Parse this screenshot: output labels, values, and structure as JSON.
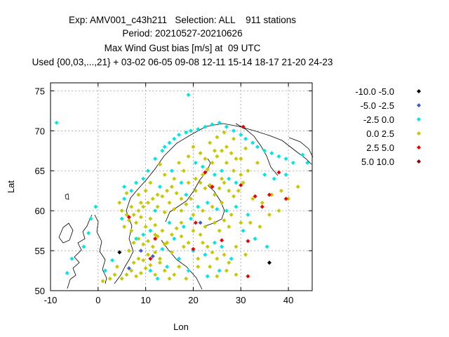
{
  "chart_data": {
    "type": "scatter",
    "title_lines": [
      "Exp: AMV001_c43h211   Selection: ALL    911 stations",
      "Period: 20210527-20210626",
      "Max Wind Gust bias [m/s] at  09 UTC",
      "Used {00,03,...,21} + 03-02 06-05 09-08 12-11 15-14 18-17 21-20 24-23"
    ],
    "xlabel": "Lon",
    "ylabel": "Lat",
    "xlim": [
      -10,
      45
    ],
    "ylim": [
      50,
      76
    ],
    "xticks": [
      -10,
      0,
      10,
      20,
      30,
      40
    ],
    "yticks": [
      50,
      55,
      60,
      65,
      70,
      75
    ],
    "xtick_labels": [
      "-10",
      "0",
      "10",
      "20",
      "30",
      "40"
    ],
    "ytick_labels": [
      "50",
      "55",
      "60",
      "65",
      "70",
      "75"
    ],
    "grid": true,
    "legend_position": "right",
    "series": [
      {
        "name": "-10.0 -5.0",
        "color": "#000000",
        "points": [
          [
            4.5,
            54.8
          ],
          [
            36.0,
            53.5
          ]
        ]
      },
      {
        "name": "-5.0 -2.5",
        "color": "#3a5fcd",
        "points": [
          [
            9.0,
            55.0
          ],
          [
            21.5,
            58.5
          ],
          [
            6.5,
            52.8
          ],
          [
            11.5,
            54.3
          ]
        ]
      },
      {
        "name": "-2.5 0.0",
        "color": "#00e5e5",
        "points": [
          [
            -8.7,
            71.0
          ],
          [
            19.0,
            74.5
          ],
          [
            -6.5,
            52.2
          ],
          [
            -5.5,
            54.0
          ],
          [
            -3.0,
            55.5
          ],
          [
            -2.0,
            57.2
          ],
          [
            -1.5,
            59.0
          ],
          [
            -0.5,
            60.5
          ],
          [
            1.5,
            52.5
          ],
          [
            3.0,
            53.8
          ],
          [
            5.0,
            59.0
          ],
          [
            5.5,
            61.5
          ],
          [
            5.5,
            63.0
          ],
          [
            7.0,
            62.5
          ],
          [
            8.0,
            63.5
          ],
          [
            9.5,
            64.0
          ],
          [
            10.5,
            65.0
          ],
          [
            12.0,
            66.5
          ],
          [
            13.5,
            67.5
          ],
          [
            14.0,
            68.0
          ],
          [
            15.0,
            68.5
          ],
          [
            16.0,
            69.0
          ],
          [
            17.0,
            69.5
          ],
          [
            18.5,
            69.8
          ],
          [
            19.5,
            70.0
          ],
          [
            21.0,
            70.2
          ],
          [
            22.5,
            70.5
          ],
          [
            24.0,
            70.8
          ],
          [
            25.5,
            71.0
          ],
          [
            27.0,
            70.5
          ],
          [
            28.5,
            70.0
          ],
          [
            30.0,
            69.5
          ],
          [
            31.0,
            69.0
          ],
          [
            32.5,
            68.5
          ],
          [
            33.5,
            68.0
          ],
          [
            35.0,
            67.5
          ],
          [
            36.5,
            67.2
          ],
          [
            38.0,
            66.8
          ],
          [
            39.5,
            66.5
          ],
          [
            41.0,
            66.0
          ],
          [
            43.0,
            67.0
          ],
          [
            44.0,
            66.0
          ],
          [
            12.0,
            60.0
          ],
          [
            15.0,
            58.5
          ],
          [
            18.0,
            58.0
          ],
          [
            19.5,
            59.0
          ],
          [
            21.0,
            60.5
          ],
          [
            23.0,
            61.0
          ],
          [
            25.0,
            60.2
          ],
          [
            27.0,
            60.0
          ],
          [
            29.0,
            60.5
          ],
          [
            31.5,
            59.5
          ],
          [
            20.0,
            55.0
          ],
          [
            22.5,
            54.5
          ],
          [
            24.5,
            56.0
          ],
          [
            26.0,
            55.5
          ],
          [
            28.0,
            54.0
          ],
          [
            16.0,
            56.5
          ],
          [
            13.5,
            55.2
          ],
          [
            11.0,
            57.5
          ],
          [
            9.5,
            57.0
          ],
          [
            8.0,
            56.5
          ],
          [
            14.5,
            53.0
          ],
          [
            17.0,
            54.0
          ],
          [
            19.0,
            52.5
          ],
          [
            23.0,
            51.8
          ],
          [
            25.5,
            52.5
          ],
          [
            30.5,
            57.5
          ],
          [
            33.0,
            56.5
          ],
          [
            35.5,
            55.5
          ],
          [
            20.5,
            66.0
          ],
          [
            22.0,
            65.5
          ],
          [
            24.5,
            64.5
          ],
          [
            26.0,
            65.0
          ],
          [
            27.5,
            64.0
          ],
          [
            29.0,
            63.5
          ],
          [
            15.5,
            65.0
          ],
          [
            17.5,
            63.5
          ],
          [
            18.5,
            62.0
          ],
          [
            13.0,
            63.0
          ],
          [
            35.0,
            64.5
          ],
          [
            37.0,
            64.0
          ],
          [
            39.5,
            64.5
          ],
          [
            11.0,
            52.5
          ],
          [
            12.5,
            51.5
          ]
        ]
      },
      {
        "name": "0.0 2.5",
        "color": "#c8c800",
        "points": [
          [
            5.0,
            51.5
          ],
          [
            6.0,
            52.0
          ],
          [
            7.0,
            52.5
          ],
          [
            8.0,
            51.8
          ],
          [
            9.0,
            52.2
          ],
          [
            10.0,
            52.8
          ],
          [
            11.0,
            53.2
          ],
          [
            12.0,
            52.0
          ],
          [
            13.0,
            53.5
          ],
          [
            14.0,
            52.5
          ],
          [
            15.0,
            51.5
          ],
          [
            7.5,
            53.5
          ],
          [
            8.5,
            54.0
          ],
          [
            9.5,
            53.8
          ],
          [
            10.5,
            54.5
          ],
          [
            6.5,
            55.0
          ],
          [
            7.5,
            56.0
          ],
          [
            8.5,
            56.5
          ],
          [
            9.5,
            55.8
          ],
          [
            10.5,
            56.2
          ],
          [
            11.5,
            55.5
          ],
          [
            12.5,
            56.8
          ],
          [
            13.5,
            57.5
          ],
          [
            14.5,
            56.0
          ],
          [
            15.5,
            57.0
          ],
          [
            16.5,
            57.8
          ],
          [
            17.5,
            58.5
          ],
          [
            5.5,
            58.0
          ],
          [
            6.5,
            58.8
          ],
          [
            7.5,
            59.5
          ],
          [
            8.5,
            60.0
          ],
          [
            9.5,
            60.5
          ],
          [
            10.5,
            61.0
          ],
          [
            11.5,
            61.5
          ],
          [
            12.5,
            62.0
          ],
          [
            13.5,
            61.8
          ],
          [
            14.5,
            62.5
          ],
          [
            15.5,
            63.0
          ],
          [
            16.5,
            62.2
          ],
          [
            17.5,
            61.5
          ],
          [
            18.5,
            60.8
          ],
          [
            19.5,
            61.5
          ],
          [
            20.5,
            62.5
          ],
          [
            21.5,
            63.5
          ],
          [
            22.5,
            62.8
          ],
          [
            23.5,
            63.2
          ],
          [
            24.5,
            62.0
          ],
          [
            25.5,
            62.8
          ],
          [
            26.5,
            63.5
          ],
          [
            27.5,
            62.5
          ],
          [
            28.5,
            61.8
          ],
          [
            29.5,
            62.5
          ],
          [
            22.0,
            64.5
          ],
          [
            23.0,
            65.2
          ],
          [
            24.0,
            66.0
          ],
          [
            25.0,
            66.8
          ],
          [
            26.0,
            67.5
          ],
          [
            27.0,
            68.0
          ],
          [
            28.0,
            67.2
          ],
          [
            29.0,
            66.5
          ],
          [
            23.5,
            68.5
          ],
          [
            25.0,
            69.2
          ],
          [
            26.5,
            69.8
          ],
          [
            20.0,
            68.0
          ],
          [
            21.5,
            67.2
          ],
          [
            19.0,
            66.8
          ],
          [
            17.0,
            66.0
          ],
          [
            18.0,
            65.0
          ],
          [
            16.0,
            64.0
          ],
          [
            14.0,
            64.5
          ],
          [
            13.0,
            65.8
          ],
          [
            20.0,
            57.5
          ],
          [
            21.5,
            57.0
          ],
          [
            22.5,
            58.0
          ],
          [
            23.5,
            59.0
          ],
          [
            24.5,
            58.5
          ],
          [
            25.5,
            57.5
          ],
          [
            26.5,
            58.8
          ],
          [
            27.5,
            58.0
          ],
          [
            22.0,
            56.0
          ],
          [
            23.0,
            55.5
          ],
          [
            24.0,
            54.8
          ],
          [
            25.0,
            54.0
          ],
          [
            26.5,
            54.5
          ],
          [
            27.5,
            53.5
          ],
          [
            18.0,
            55.5
          ],
          [
            17.0,
            53.0
          ],
          [
            16.0,
            52.0
          ],
          [
            18.5,
            51.5
          ],
          [
            21.0,
            53.0
          ],
          [
            29.0,
            55.5
          ],
          [
            31.0,
            54.5
          ],
          [
            32.0,
            58.5
          ],
          [
            34.0,
            58.0
          ],
          [
            36.0,
            59.5
          ],
          [
            38.0,
            60.0
          ],
          [
            40.0,
            61.5
          ],
          [
            42.0,
            63.0
          ],
          [
            38.5,
            62.5
          ],
          [
            36.5,
            62.0
          ],
          [
            34.5,
            61.0
          ],
          [
            32.5,
            61.5
          ],
          [
            30.5,
            63.5
          ],
          [
            31.5,
            65.0
          ],
          [
            33.5,
            66.0
          ],
          [
            30.0,
            66.5
          ],
          [
            31.0,
            67.8
          ],
          [
            28.5,
            69.0
          ],
          [
            4.5,
            61.0
          ],
          [
            5.0,
            60.0
          ],
          [
            6.0,
            62.2
          ],
          [
            11.0,
            59.0
          ],
          [
            12.0,
            58.2
          ],
          [
            14.0,
            59.8
          ],
          [
            16.0,
            60.2
          ],
          [
            13.0,
            54.0
          ],
          [
            12.0,
            54.8
          ],
          [
            2.5,
            51.5
          ],
          [
            3.5,
            52.0
          ],
          [
            4.0,
            53.0
          ],
          [
            1.0,
            51.2
          ],
          [
            20.5,
            64.0
          ],
          [
            19.0,
            63.5
          ],
          [
            17.5,
            60.0
          ],
          [
            15.0,
            61.0
          ],
          [
            22.0,
            60.0
          ],
          [
            24.0,
            60.5
          ],
          [
            26.0,
            61.0
          ],
          [
            28.0,
            59.5
          ],
          [
            30.0,
            58.5
          ],
          [
            20.0,
            59.5
          ],
          [
            21.0,
            54.0
          ],
          [
            23.5,
            53.0
          ],
          [
            25.0,
            51.8
          ],
          [
            27.0,
            52.5
          ],
          [
            29.0,
            52.0
          ],
          [
            10.0,
            58.0
          ],
          [
            9.0,
            59.2
          ],
          [
            8.0,
            58.5
          ],
          [
            7.0,
            57.5
          ],
          [
            12.0,
            57.0
          ],
          [
            14.0,
            55.8
          ],
          [
            15.5,
            54.8
          ],
          [
            17.5,
            56.8
          ],
          [
            19.0,
            56.0
          ],
          [
            12.5,
            60.5
          ],
          [
            10.0,
            62.5
          ],
          [
            11.0,
            63.5
          ],
          [
            8.5,
            62.0
          ],
          [
            9.0,
            61.0
          ],
          [
            7.0,
            60.5
          ],
          [
            6.0,
            59.5
          ],
          [
            22.5,
            66.5
          ],
          [
            24.5,
            67.5
          ],
          [
            27.0,
            66.0
          ],
          [
            28.5,
            65.0
          ],
          [
            30.0,
            64.5
          ],
          [
            26.0,
            64.0
          ]
        ]
      },
      {
        "name": "2.5 5.0",
        "color": "#ee0000",
        "points": [
          [
            6.5,
            59.2
          ],
          [
            12.0,
            56.5
          ],
          [
            20.0,
            55.2
          ],
          [
            22.5,
            64.8
          ],
          [
            24.0,
            63.0
          ],
          [
            26.0,
            56.3
          ],
          [
            30.0,
            63.2
          ],
          [
            31.5,
            56.2
          ],
          [
            33.0,
            61.8
          ],
          [
            34.5,
            60.5
          ],
          [
            36.0,
            62.0
          ],
          [
            38.0,
            64.8
          ],
          [
            39.5,
            61.5
          ],
          [
            30.5,
            70.5
          ],
          [
            31.5,
            51.8
          ],
          [
            20.5,
            58.5
          ],
          [
            11.0,
            54.0
          ]
        ]
      },
      {
        "name": "5.0 10.0",
        "color": "#8b0000",
        "points": []
      }
    ]
  }
}
